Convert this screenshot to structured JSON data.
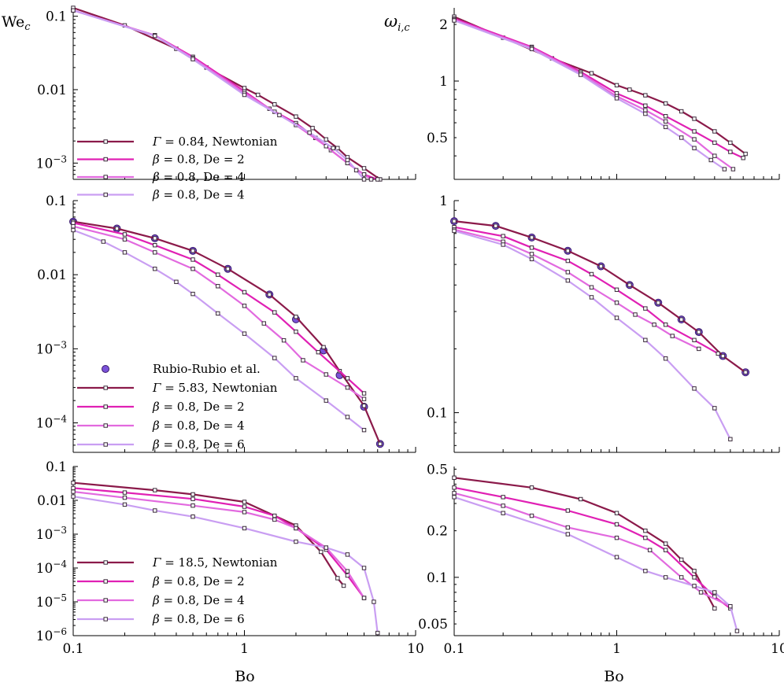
{
  "figure": {
    "xlabel": "Bo",
    "ylabel_left": "We",
    "ylabel_left_sub": "c",
    "ylabel_right": "ω",
    "ylabel_right_sub": "i,c"
  },
  "colors": {
    "newt": "#8b1a4a",
    "de2": "#e020b4",
    "de4": "#e26adf",
    "de6": "#c99ef2",
    "exp": "#7a52d8"
  },
  "chart_data": [
    {
      "type": "line",
      "title": "",
      "xlabel": "",
      "ylabel": "We_c",
      "xscale": "log",
      "yscale": "log",
      "xlim": [
        0.1,
        10
      ],
      "ylim": [
        0.0006,
        0.13
      ],
      "yticks": [
        "0.1",
        "0.01",
        "10^-3"
      ],
      "series": [
        {
          "name": "Γ = 0.84, Newtonian",
          "color": "newt",
          "x": [
            0.1,
            0.2,
            0.4,
            0.6,
            1,
            1.2,
            1.5,
            2,
            2.5,
            3,
            3.5,
            4,
            5,
            6.2
          ],
          "y": [
            0.13,
            0.075,
            0.036,
            0.02,
            0.0105,
            0.0085,
            0.0063,
            0.0043,
            0.003,
            0.0021,
            0.0016,
            0.0012,
            0.00085,
            0.0006
          ]
        },
        {
          "name": "β = 0.8, De = 2",
          "color": "de2",
          "x": [
            0.1,
            0.3,
            0.5,
            1,
            1.4,
            2,
            2.6,
            3.2,
            4,
            5,
            6
          ],
          "y": [
            0.12,
            0.055,
            0.028,
            0.0095,
            0.0055,
            0.0035,
            0.0022,
            0.0015,
            0.001,
            0.0007,
            0.0006
          ]
        },
        {
          "name": "β = 0.8, De = 4",
          "color": "de4",
          "x": [
            0.1,
            0.3,
            0.5,
            1,
            1.5,
            2,
            3,
            4,
            5,
            5.5
          ],
          "y": [
            0.12,
            0.055,
            0.027,
            0.009,
            0.005,
            0.0033,
            0.0017,
            0.001,
            0.0007,
            0.0006
          ]
        },
        {
          "name": "β = 0.8, De = 4",
          "color": "de6",
          "x": [
            0.1,
            0.3,
            0.5,
            1,
            1.6,
            2.4,
            3.3,
            4,
            4.5,
            5
          ],
          "y": [
            0.12,
            0.054,
            0.026,
            0.0085,
            0.0045,
            0.0026,
            0.0016,
            0.0011,
            0.0008,
            0.0006
          ]
        }
      ]
    },
    {
      "type": "line",
      "title": "",
      "xlabel": "",
      "ylabel": "ω_i,c",
      "xscale": "log",
      "yscale": "log",
      "xlim": [
        0.1,
        10
      ],
      "ylim": [
        0.3,
        2.45
      ],
      "yticks": [
        "2",
        "1",
        "0.5"
      ],
      "series": [
        {
          "name": "Γ = 0.84, Newtonian",
          "color": "newt",
          "x": [
            0.1,
            0.2,
            0.4,
            0.7,
            1,
            1.2,
            1.5,
            2,
            2.5,
            3,
            4,
            5,
            6.2
          ],
          "y": [
            2.2,
            1.7,
            1.32,
            1.1,
            0.95,
            0.9,
            0.84,
            0.76,
            0.69,
            0.63,
            0.54,
            0.47,
            0.41
          ]
        },
        {
          "name": "β = 0.8, De = 2",
          "color": "de2",
          "x": [
            0.1,
            0.3,
            0.6,
            1,
            1.5,
            2,
            3,
            4,
            5,
            6
          ],
          "y": [
            2.15,
            1.52,
            1.12,
            0.86,
            0.74,
            0.65,
            0.54,
            0.47,
            0.42,
            0.39
          ]
        },
        {
          "name": "β = 0.8, De = 4",
          "color": "de4",
          "x": [
            0.1,
            0.3,
            0.6,
            1,
            1.5,
            2,
            3,
            4,
            5.2
          ],
          "y": [
            2.12,
            1.5,
            1.1,
            0.83,
            0.7,
            0.61,
            0.49,
            0.4,
            0.34
          ]
        },
        {
          "name": "β = 0.8, De = 4",
          "color": "de6",
          "x": [
            0.1,
            0.3,
            0.6,
            1,
            1.5,
            2,
            2.5,
            3,
            3.8,
            4.6
          ],
          "y": [
            2.1,
            1.48,
            1.08,
            0.81,
            0.67,
            0.57,
            0.5,
            0.44,
            0.38,
            0.34
          ]
        }
      ]
    },
    {
      "type": "line",
      "title": "",
      "xlabel": "",
      "ylabel": "We_c",
      "xscale": "log",
      "yscale": "log",
      "xlim": [
        0.1,
        10
      ],
      "ylim": [
        4e-05,
        0.1
      ],
      "yticks": [
        "0.1",
        "0.01",
        "10^-3",
        "10^-4"
      ],
      "series": [
        {
          "name": "Rubio-Rubio et al.",
          "color": "exp",
          "marker": "circle",
          "line": false,
          "x": [
            0.1,
            0.18,
            0.3,
            0.5,
            0.8,
            1.4,
            2,
            2.9,
            3.6,
            5,
            6.2
          ],
          "y": [
            0.052,
            0.042,
            0.031,
            0.021,
            0.012,
            0.0054,
            0.0025,
            0.00095,
            0.00044,
            0.000165,
            5.2e-05
          ]
        },
        {
          "name": "Γ = 5.83, Newtonian",
          "color": "newt",
          "x": [
            0.1,
            0.18,
            0.3,
            0.5,
            0.8,
            1.4,
            2,
            2.9,
            3.6,
            5,
            6.2
          ],
          "y": [
            0.052,
            0.042,
            0.031,
            0.021,
            0.012,
            0.0054,
            0.0027,
            0.00105,
            0.0005,
            0.00017,
            5.2e-05
          ]
        },
        {
          "name": "β = 0.8, De = 2",
          "color": "de2",
          "x": [
            0.1,
            0.2,
            0.3,
            0.5,
            0.7,
            1,
            1.5,
            2,
            2.7,
            4,
            5
          ],
          "y": [
            0.05,
            0.035,
            0.025,
            0.016,
            0.01,
            0.0058,
            0.0031,
            0.0017,
            0.0009,
            0.0004,
            0.00025
          ]
        },
        {
          "name": "β = 0.8, De = 4",
          "color": "de4",
          "x": [
            0.1,
            0.2,
            0.3,
            0.5,
            0.7,
            1,
            1.3,
            1.7,
            2.2,
            3,
            4,
            5
          ],
          "y": [
            0.045,
            0.03,
            0.02,
            0.012,
            0.007,
            0.0038,
            0.0022,
            0.0013,
            0.0007,
            0.00045,
            0.0003,
            0.00021
          ]
        },
        {
          "name": "β = 0.8, De = 6",
          "color": "de6",
          "x": [
            0.1,
            0.15,
            0.2,
            0.3,
            0.4,
            0.5,
            0.7,
            1,
            1.5,
            2,
            3,
            4,
            5
          ],
          "y": [
            0.04,
            0.028,
            0.02,
            0.012,
            0.008,
            0.0055,
            0.003,
            0.0016,
            0.00075,
            0.0004,
            0.0002,
            0.00012,
            8e-05
          ]
        }
      ]
    },
    {
      "type": "line",
      "title": "",
      "xlabel": "",
      "ylabel": "ω_i,c",
      "xscale": "log",
      "yscale": "log",
      "xlim": [
        0.1,
        10
      ],
      "ylim": [
        0.065,
        1
      ],
      "yticks": [
        "1",
        "0.1"
      ],
      "series": [
        {
          "name": "Rubio-Rubio et al.",
          "color": "exp",
          "marker": "circle",
          "line": false,
          "x": [
            0.1,
            0.18,
            0.3,
            0.5,
            0.8,
            1.2,
            1.8,
            2.5,
            3.2,
            4.5,
            6.2
          ],
          "y": [
            0.8,
            0.76,
            0.67,
            0.58,
            0.49,
            0.4,
            0.33,
            0.275,
            0.24,
            0.185,
            0.155
          ]
        },
        {
          "name": "Γ = 5.83, Newtonian",
          "color": "newt",
          "x": [
            0.1,
            0.18,
            0.3,
            0.5,
            0.8,
            1.2,
            1.8,
            2.5,
            3.2,
            4.5,
            6.2
          ],
          "y": [
            0.8,
            0.76,
            0.67,
            0.58,
            0.49,
            0.4,
            0.33,
            0.275,
            0.24,
            0.185,
            0.155
          ]
        },
        {
          "name": "β = 0.8, De = 2",
          "color": "de2",
          "x": [
            0.1,
            0.2,
            0.3,
            0.5,
            0.7,
            1,
            1.5,
            2,
            3,
            4.2
          ],
          "y": [
            0.75,
            0.68,
            0.6,
            0.52,
            0.45,
            0.38,
            0.31,
            0.26,
            0.22,
            0.19
          ]
        },
        {
          "name": "β = 0.8, De = 4",
          "color": "de4",
          "x": [
            0.1,
            0.2,
            0.3,
            0.5,
            0.7,
            1,
            1.3,
            1.7,
            2.2,
            3.2
          ],
          "y": [
            0.73,
            0.64,
            0.56,
            0.46,
            0.39,
            0.33,
            0.29,
            0.26,
            0.23,
            0.2
          ]
        },
        {
          "name": "β = 0.8, De = 6",
          "color": "de6",
          "x": [
            0.1,
            0.2,
            0.3,
            0.5,
            0.7,
            1,
            1.5,
            2,
            3,
            4,
            5
          ],
          "y": [
            0.72,
            0.62,
            0.53,
            0.42,
            0.35,
            0.28,
            0.22,
            0.18,
            0.13,
            0.105,
            0.075
          ]
        }
      ]
    },
    {
      "type": "line",
      "title": "",
      "xlabel": "Bo",
      "ylabel": "We_c",
      "xscale": "log",
      "yscale": "log",
      "xlim": [
        0.1,
        10
      ],
      "ylim": [
        1e-06,
        0.1
      ],
      "xticks": [
        "0.1",
        "1",
        "10"
      ],
      "yticks": [
        "0.1",
        "0.01",
        "10^-3",
        "10^-4",
        "10^-5",
        "10^-6"
      ],
      "series": [
        {
          "name": "Γ = 18.5, Newtonian",
          "color": "newt",
          "x": [
            0.1,
            0.3,
            0.5,
            1,
            2,
            2.8,
            3.5,
            3.8
          ],
          "y": [
            0.033,
            0.02,
            0.015,
            0.009,
            0.0018,
            0.0003,
            5e-05,
            3e-05
          ]
        },
        {
          "name": "β = 0.8, De = 2",
          "color": "de2",
          "x": [
            0.1,
            0.2,
            0.5,
            1,
            1.5,
            2,
            3,
            4,
            5
          ],
          "y": [
            0.023,
            0.017,
            0.011,
            0.0065,
            0.0035,
            0.0015,
            0.00035,
            6e-05,
            1.3e-05
          ]
        },
        {
          "name": "β = 0.8, De = 4",
          "color": "de4",
          "x": [
            0.1,
            0.2,
            0.5,
            1,
            1.5,
            2,
            3,
            4,
            5
          ],
          "y": [
            0.018,
            0.012,
            0.007,
            0.0045,
            0.0027,
            0.0015,
            0.0004,
            8e-05,
            1.3e-05
          ]
        },
        {
          "name": "β = 0.8, De = 6",
          "color": "de6",
          "x": [
            0.1,
            0.2,
            0.3,
            0.5,
            1,
            2,
            3,
            4,
            5,
            5.7,
            6
          ],
          "y": [
            0.013,
            0.0075,
            0.005,
            0.0033,
            0.0015,
            0.0006,
            0.0004,
            0.00025,
            0.0001,
            1e-05,
            1.2e-06
          ]
        }
      ]
    },
    {
      "type": "line",
      "title": "",
      "xlabel": "Bo",
      "ylabel": "ω_i,c",
      "xscale": "log",
      "yscale": "log",
      "xlim": [
        0.1,
        10
      ],
      "ylim": [
        0.042,
        0.52
      ],
      "xticks": [
        "0.1",
        "1",
        "10"
      ],
      "yticks": [
        "0.5",
        "0.2",
        "0.1",
        "0.05"
      ],
      "series": [
        {
          "name": "Γ = 18.5, Newtonian",
          "color": "newt",
          "x": [
            0.1,
            0.3,
            0.6,
            1,
            1.5,
            2,
            2.5,
            3,
            4
          ],
          "y": [
            0.44,
            0.38,
            0.32,
            0.26,
            0.2,
            0.165,
            0.13,
            0.11,
            0.063
          ]
        },
        {
          "name": "β = 0.8, De = 2",
          "color": "de2",
          "x": [
            0.1,
            0.2,
            0.5,
            1,
            1.5,
            2,
            3,
            4,
            5
          ],
          "y": [
            0.38,
            0.33,
            0.27,
            0.22,
            0.18,
            0.15,
            0.1,
            0.075,
            0.063
          ]
        },
        {
          "name": "β = 0.8, De = 4",
          "color": "de4",
          "x": [
            0.1,
            0.2,
            0.3,
            0.5,
            1,
            1.6,
            2.5,
            3.3,
            5
          ],
          "y": [
            0.35,
            0.29,
            0.25,
            0.21,
            0.18,
            0.15,
            0.1,
            0.08,
            0.065
          ]
        },
        {
          "name": "β = 0.8, De = 6",
          "color": "de6",
          "x": [
            0.1,
            0.2,
            0.5,
            1,
            1.5,
            2,
            3,
            4,
            5,
            5.5
          ],
          "y": [
            0.33,
            0.26,
            0.19,
            0.135,
            0.11,
            0.1,
            0.088,
            0.08,
            0.065,
            0.045
          ]
        }
      ]
    }
  ],
  "legends": {
    "top": [
      {
        "sym": "Γ",
        "text": " = 0.84, Newtonian",
        "color": "newt"
      },
      {
        "sym": "β",
        "text": " = 0.8, De = 2",
        "color": "de2"
      },
      {
        "sym": "β",
        "text": " = 0.8, De = 4",
        "color": "de4"
      },
      {
        "sym": "β",
        "text": " = 0.8, De = 4",
        "color": "de6"
      }
    ],
    "middle": [
      {
        "sym": "",
        "text": "Rubio-Rubio et al.",
        "color": "exp",
        "marker": "circle"
      },
      {
        "sym": "Γ",
        "text": " = 5.83, Newtonian",
        "color": "newt"
      },
      {
        "sym": "β",
        "text": " = 0.8, De = 2",
        "color": "de2"
      },
      {
        "sym": "β",
        "text": " = 0.8, De = 4",
        "color": "de4"
      },
      {
        "sym": "β",
        "text": " = 0.8, De = 6",
        "color": "de6"
      }
    ],
    "bottom": [
      {
        "sym": "Γ",
        "text": " = 18.5, Newtonian",
        "color": "newt"
      },
      {
        "sym": "β",
        "text": " = 0.8, De = 2",
        "color": "de2"
      },
      {
        "sym": "β",
        "text": " = 0.8, De = 4",
        "color": "de4"
      },
      {
        "sym": "β",
        "text": " = 0.8, De = 6",
        "color": "de6"
      }
    ]
  }
}
